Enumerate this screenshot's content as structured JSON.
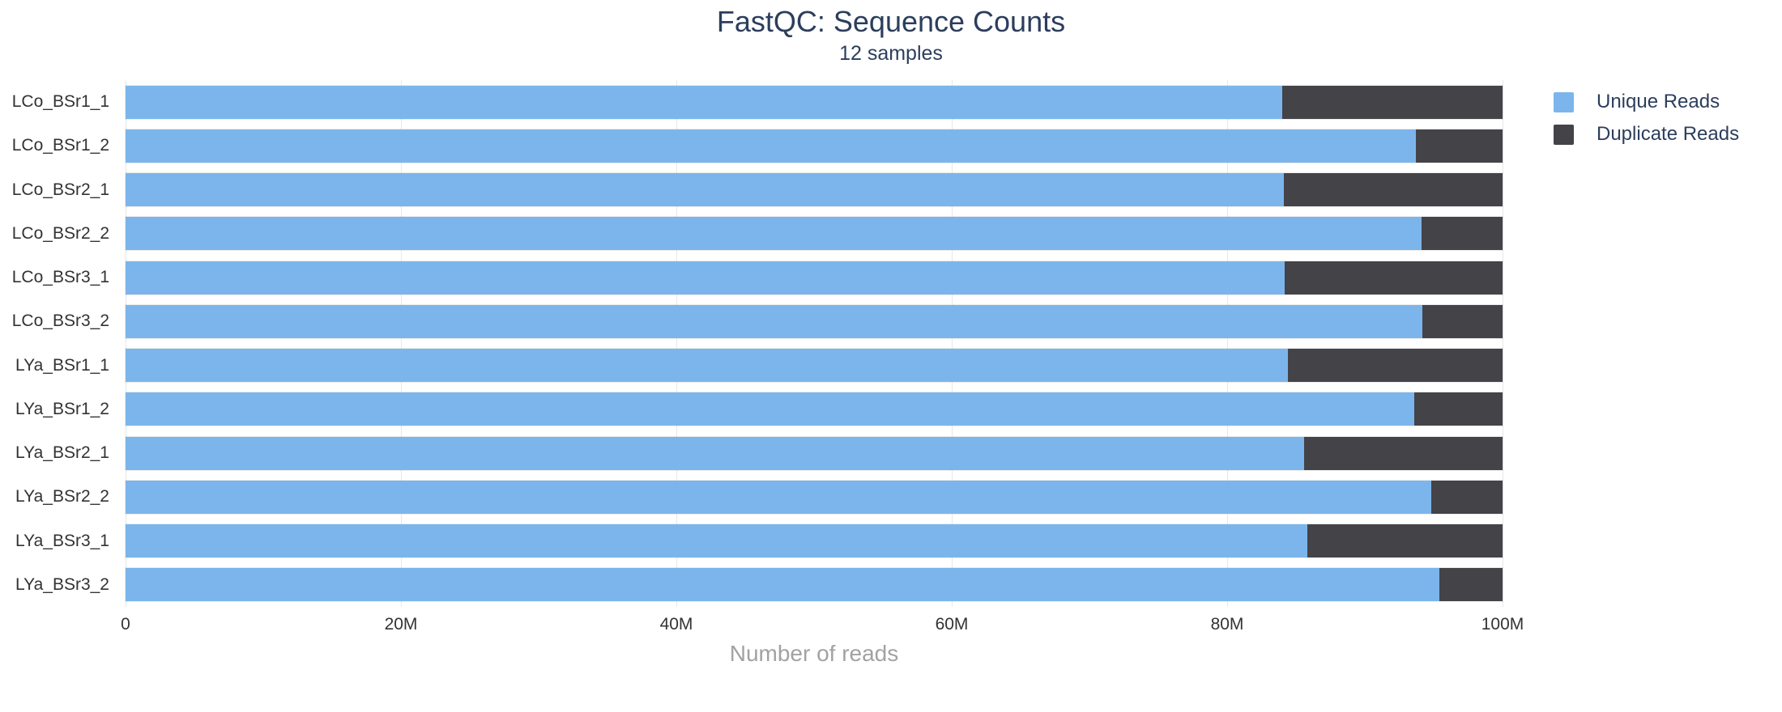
{
  "chart": {
    "title": "FastQC: Sequence Counts",
    "subtitle": "12 samples"
  },
  "chart_data": {
    "type": "bar",
    "orientation": "horizontal",
    "stacked": true,
    "title": "FastQC: Sequence Counts",
    "subtitle": "12 samples",
    "xlabel": "Number of reads",
    "ylabel": "",
    "xlim": [
      0,
      100000000
    ],
    "grid": true,
    "legend_position": "top-right",
    "categories": [
      "LCo_BSr1_1",
      "LCo_BSr1_2",
      "LCo_BSr2_1",
      "LCo_BSr2_2",
      "LCo_BSr3_1",
      "LCo_BSr3_2",
      "LYa_BSr1_1",
      "LYa_BSr1_2",
      "LYa_BSr2_1",
      "LYa_BSr2_2",
      "LYa_BSr3_1",
      "LYa_BSr3_2"
    ],
    "series": [
      {
        "name": "Unique Reads",
        "color": "#7cb5ec",
        "values": [
          84000000,
          93700000,
          84100000,
          94100000,
          84200000,
          94200000,
          84400000,
          93600000,
          85600000,
          94800000,
          85800000,
          95400000
        ]
      },
      {
        "name": "Duplicate Reads",
        "color": "#434348",
        "values": [
          16000000,
          6300000,
          15900000,
          5900000,
          15800000,
          5800000,
          15600000,
          6400000,
          14400000,
          5200000,
          14200000,
          4600000
        ]
      }
    ],
    "x_ticks": [
      {
        "value": 0,
        "label": "0"
      },
      {
        "value": 20000000,
        "label": "20M"
      },
      {
        "value": 40000000,
        "label": "40M"
      },
      {
        "value": 60000000,
        "label": "60M"
      },
      {
        "value": 80000000,
        "label": "80M"
      },
      {
        "value": 100000000,
        "label": "100M"
      }
    ]
  }
}
